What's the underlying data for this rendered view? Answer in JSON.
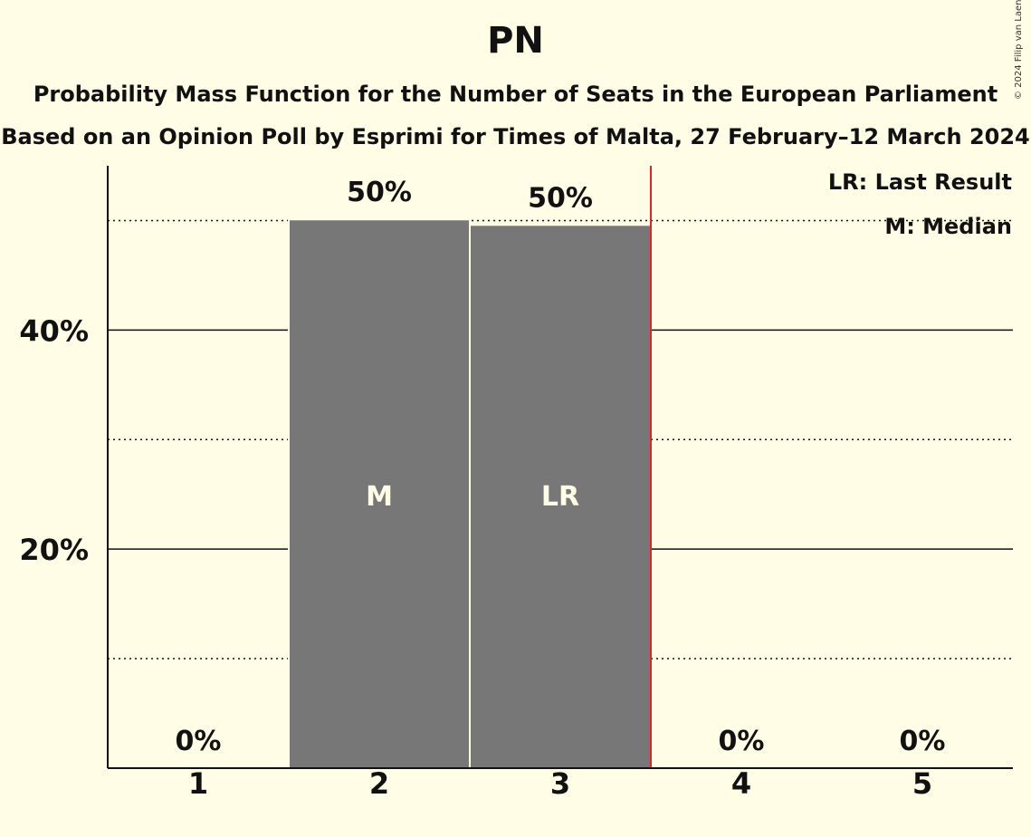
{
  "chart_data": {
    "type": "bar",
    "title": "PN",
    "subtitle": "Probability Mass Function for the Number of Seats in the European Parliament",
    "subtitle2": "Based on an Opinion Poll by Esprimi for Times of Malta, 27 February–12 March 2024",
    "copyright": "© 2024 Filip van Laenen",
    "categories": [
      "1",
      "2",
      "3",
      "4",
      "5"
    ],
    "values": [
      0,
      50.1,
      49.6,
      0,
      0
    ],
    "value_labels": [
      "0%",
      "50%",
      "50%",
      "0%",
      "0%"
    ],
    "bar_marks": [
      "",
      "M",
      "LR",
      "",
      ""
    ],
    "y_ticks": [
      20,
      40
    ],
    "y_tick_labels": [
      "20%",
      "40%"
    ],
    "y_minor_ticks": [
      10,
      30,
      50
    ],
    "ylim": [
      0,
      55
    ],
    "last_result_seat": 3,
    "legend": [
      "LR: Last Result",
      "M: Median"
    ],
    "colors": {
      "background": "#fffde6",
      "bar": "#777777",
      "last_result_line": "#e8202a"
    }
  }
}
